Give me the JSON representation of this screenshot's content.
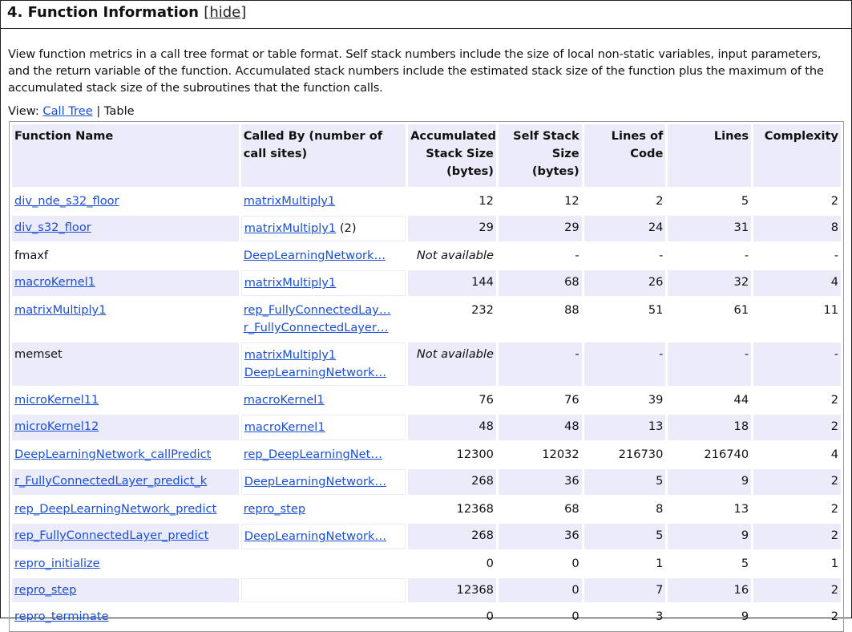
{
  "section": {
    "title": "4. Function Information",
    "hide_label": "hide"
  },
  "description": "View function metrics in a call tree format or table format. Self stack numbers include the size of local non-static variables, input parameters, and the return variable of the function. Accumulated stack numbers include the estimated stack size of the function plus the maximum of the accumulated stack size of the subroutines that the function calls.",
  "view": {
    "label": "View:",
    "call_tree": "Call Tree",
    "separator": "|",
    "table": "Table"
  },
  "columns": [
    "Function Name",
    "Called By (number of call sites)",
    "Accumulated Stack Size (bytes)",
    "Self Stack Size (bytes)",
    "Lines of Code",
    "Lines",
    "Complexity"
  ],
  "rows": [
    {
      "name": "div_nde_s32_floor",
      "link": true,
      "called_by": [
        "matrixMultiply1"
      ],
      "count": "",
      "acc": "12",
      "self": "12",
      "loc": "2",
      "lines": "5",
      "cx": "2"
    },
    {
      "name": "div_s32_floor",
      "link": true,
      "called_by": [
        "matrixMultiply1"
      ],
      "count": "(2)",
      "acc": "29",
      "self": "29",
      "loc": "24",
      "lines": "31",
      "cx": "8"
    },
    {
      "name": "fmaxf",
      "link": false,
      "called_by": [
        "DeepLearningNetwork…"
      ],
      "count": "",
      "acc": "Not available",
      "self": "-",
      "loc": "-",
      "lines": "-",
      "cx": "-"
    },
    {
      "name": "macroKernel1",
      "link": true,
      "called_by": [
        "matrixMultiply1"
      ],
      "count": "",
      "acc": "144",
      "self": "68",
      "loc": "26",
      "lines": "32",
      "cx": "4"
    },
    {
      "name": "matrixMultiply1",
      "link": true,
      "called_by": [
        "rep_FullyConnectedLay…",
        "r_FullyConnectedLayer…"
      ],
      "count": "",
      "acc": "232",
      "self": "88",
      "loc": "51",
      "lines": "61",
      "cx": "11"
    },
    {
      "name": "memset",
      "link": false,
      "called_by": [
        "matrixMultiply1",
        "DeepLearningNetwork…"
      ],
      "count": "",
      "acc": "Not available",
      "self": "-",
      "loc": "-",
      "lines": "-",
      "cx": "-"
    },
    {
      "name": "microKernel11",
      "link": true,
      "called_by": [
        "macroKernel1"
      ],
      "count": "",
      "acc": "76",
      "self": "76",
      "loc": "39",
      "lines": "44",
      "cx": "2"
    },
    {
      "name": "microKernel12",
      "link": true,
      "called_by": [
        "macroKernel1"
      ],
      "count": "",
      "acc": "48",
      "self": "48",
      "loc": "13",
      "lines": "18",
      "cx": "2"
    },
    {
      "name": "DeepLearningNetwork_callPredict",
      "link": true,
      "called_by": [
        "rep_DeepLearningNet…"
      ],
      "count": "",
      "acc": "12300",
      "self": "12032",
      "loc": "216730",
      "lines": "216740",
      "cx": "4"
    },
    {
      "name": "r_FullyConnectedLayer_predict_k",
      "link": true,
      "called_by": [
        "DeepLearningNetwork…"
      ],
      "count": "",
      "acc": "268",
      "self": "36",
      "loc": "5",
      "lines": "9",
      "cx": "2"
    },
    {
      "name": "rep_DeepLearningNetwork_predict",
      "link": true,
      "called_by": [
        "repro_step"
      ],
      "count": "",
      "acc": "12368",
      "self": "68",
      "loc": "8",
      "lines": "13",
      "cx": "2"
    },
    {
      "name": "rep_FullyConnectedLayer_predict",
      "link": true,
      "called_by": [
        "DeepLearningNetwork…"
      ],
      "count": "",
      "acc": "268",
      "self": "36",
      "loc": "5",
      "lines": "9",
      "cx": "2"
    },
    {
      "name": "repro_initialize",
      "link": true,
      "called_by": [],
      "count": "",
      "acc": "0",
      "self": "0",
      "loc": "1",
      "lines": "5",
      "cx": "1"
    },
    {
      "name": "repro_step",
      "link": true,
      "called_by": [],
      "count": "",
      "acc": "12368",
      "self": "0",
      "loc": "7",
      "lines": "16",
      "cx": "2"
    },
    {
      "name": "repro_terminate",
      "link": true,
      "called_by": [],
      "count": "",
      "acc": "0",
      "self": "0",
      "loc": "3",
      "lines": "9",
      "cx": "2"
    }
  ]
}
